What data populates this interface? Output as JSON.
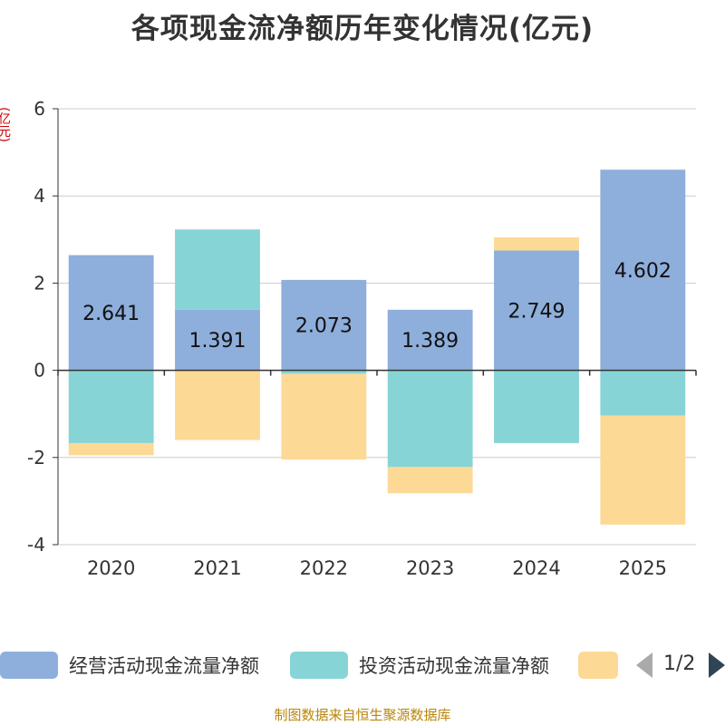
{
  "colors": {
    "operating": "#8eaedb",
    "investing": "#87d4d6",
    "financing": "#fdd996",
    "title": "#333333",
    "unit": "#cc0000",
    "source": "#b8860b"
  },
  "legend": {
    "items": [
      "经营活动现金流量净额",
      "投资活动现金流量净额",
      ""
    ],
    "page": "1/2"
  },
  "source": "制图数据来自恒生聚源数据库",
  "chart_data": {
    "type": "bar",
    "stacked": true,
    "title": "各项现金流净额历年变化情况(亿元)",
    "ylabel": "(亿元)",
    "xlabel": "",
    "categories": [
      "2020",
      "2021",
      "2022",
      "2023",
      "2024",
      "2025"
    ],
    "series": [
      {
        "name": "经营活动现金流量净额",
        "values": [
          2.641,
          1.391,
          2.073,
          1.389,
          2.749,
          4.602
        ]
      },
      {
        "name": "投资活动现金流量净额",
        "values": [
          -1.67,
          1.84,
          -0.08,
          -2.22,
          -1.67,
          -1.04
        ]
      },
      {
        "name": "",
        "values": [
          -0.28,
          -1.6,
          -1.97,
          -0.6,
          0.3,
          -2.5
        ]
      }
    ],
    "data_labels": [
      "2.641",
      "1.391",
      "2.073",
      "1.389",
      "2.749",
      "4.602"
    ],
    "yticks": [
      -4,
      -2,
      0,
      2,
      4,
      6
    ],
    "ylim": [
      -4,
      6
    ],
    "grid": true,
    "legend_position": "bottom"
  }
}
